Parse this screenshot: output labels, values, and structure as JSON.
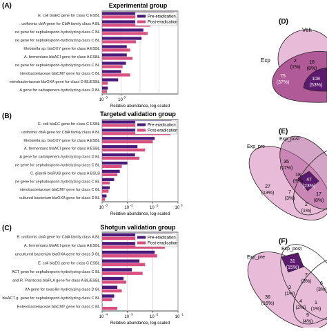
{
  "colors": {
    "pre": "#4a1a7a",
    "post": "#d94f7f",
    "venn_dark": "#5c1a6e",
    "venn_mid": "#b05a98",
    "venn_light": "#e8bcd8"
  },
  "chart_data": [
    {
      "type": "bar",
      "panel_label": "(A)",
      "title": "Experimental group",
      "xlabel": "Relative abundance, log-scaled",
      "xscale": "log",
      "xlim": [
        0.001,
        10
      ],
      "ticks": [
        "10",
        "-3",
        "10",
        "0"
      ],
      "legend": {
        "placement": "top-right",
        "entries": [
          "Pre-eradication",
          "Post-eradication"
        ]
      },
      "categories": [
        "E. coli blaEC gene for class C ESBL",
        ". uniformis cblA gene for CblA family class A BL",
        "ne gene for cephalosporin-hydrolyzing class C BL",
        "ne gene for cephalosporin-hydrolyzing class C BL",
        "Klebsiella sp. blaOXY gene for class A ESBL",
        "A. fermentans blaACI gene for class A ESBL",
        "ne gene for cephalosporin-hydrolyzing class C BL",
        "nterobacteriaceae blaCMY gene for class C BL",
        "nterobacteriaceae blaOXA gene for class D BL/ESBL",
        "A gene for carbapenem-hydrolyzing class D BL"
      ],
      "series": [
        {
          "name": "Pre-eradication",
          "values": [
            6,
            0.5,
            0.15,
            0.12,
            0.02,
            0.02,
            0.018,
            0.01,
            0.007,
            0.002
          ]
        },
        {
          "name": "Post-eradication",
          "values": [
            7,
            0.35,
            0.25,
            0.06,
            0.03,
            0.04,
            0.012,
            0.03,
            0.002,
            0.0018
          ]
        }
      ]
    },
    {
      "type": "bar",
      "panel_label": "(B)",
      "title": "Targeted validation group",
      "xlabel": "Relative abundance, log-scaled",
      "xscale": "log",
      "xlim": [
        0.001,
        1
      ],
      "ticks": [
        "10",
        "-3",
        "10",
        "-2",
        "10",
        "-1",
        "10",
        "0"
      ],
      "legend": {
        "placement": "top-right",
        "entries": [
          "Pre-eradication",
          "Post-eradication"
        ]
      },
      "categories": [
        "E. coli blaEC gene for class C ESBL",
        ". uniformis cblA gene for CblA family class A BL",
        "Klebsiella sp. blaOXY gene for class A ESBL",
        "A. fermentans blaACI gene for class A ESBL",
        "A gene for carbapenem-hydrolyzing class D BL",
        "ne gene for cephalosporin-hydrolyzing class C BL",
        "C. gilardii blaRUB gene for class A BSLB",
        "ne gene for cephalosporin-hydrolyzing class C BL",
        "nterobacteriaceae blaCMY gene for class C BL",
        "cultured bacterium blaOXA gene for class D BL"
      ],
      "series": [
        {
          "name": "Pre-eradication",
          "values": [
            0.55,
            0.3,
            0.12,
            0.025,
            0.02,
            0.01,
            0.005,
            0.003,
            0.002,
            0.0015
          ]
        },
        {
          "name": "Post-eradication",
          "values": [
            0.8,
            0.5,
            0.1,
            0.05,
            0.03,
            0.006,
            0.004,
            0.002,
            0.0018,
            0.0013
          ]
        }
      ]
    },
    {
      "type": "bar",
      "panel_label": "(C)",
      "title": "Shotgun validation group",
      "xlabel": "Relative abundance, log-scaled",
      "xscale": "log",
      "xlim": [
        0.0001,
        0.1
      ],
      "ticks": [
        "10",
        "-4",
        "10",
        "-3",
        "10",
        "-2",
        "10",
        "-1"
      ],
      "legend": {
        "placement": "top-right",
        "entries": [
          "Pre-eradication",
          "Post-eradication"
        ]
      },
      "categories": [
        "B. uniformis cblA gene for CblA family class A BL",
        "A. fermentans blaACI gene for class A ESBL",
        "uncultured bacterium blaOXA gene for class D BL",
        "E. coli blaEC gene for class C ESBL",
        "ACT gene for cephalosporin-hydrolyzing class C BL",
        "and R. Planticola blaPLA gene for class A BL/ESBL",
        "XA gene for oxacillin-hydrolyzing class D BL",
        "blaACT g. gene for cephalosporin-hydrolyzing class C BL",
        "Enterobacteriaceae blaCMY gene for class C BL"
      ],
      "series": [
        {
          "name": "Pre-eradication",
          "values": [
            0.06,
            0.02,
            0.012,
            0.003,
            0.0015,
            0.0007,
            0.0004,
            0.0003,
            0.0001
          ]
        },
        {
          "name": "Post-eradication",
          "values": [
            0.08,
            0.03,
            0.015,
            0.005,
            0.004,
            0.0009,
            0.0006,
            0.00025,
            0.0004
          ]
        }
      ]
    }
  ],
  "venn": {
    "D": {
      "label": "(D)",
      "sets": [
        "Veh",
        "Exp"
      ],
      "regions": [
        {
          "count": "2",
          "pct": "(1%)"
        },
        {
          "count": "18",
          "pct": "(8%)"
        },
        {
          "count": "75",
          "pct": "(37%)"
        },
        {
          "count": "108",
          "pct": "(53%)"
        }
      ]
    },
    "E": {
      "label": "(E)",
      "sets": [
        "Exp_post",
        "Exp_pre"
      ],
      "regions": [
        {
          "count": "35",
          "pct": "(17%)"
        },
        {
          "count": "18",
          "pct": "(8%)"
        },
        {
          "count": "27",
          "pct": "(13%)"
        },
        {
          "count": "7",
          "pct": "(3%)"
        },
        {
          "count": "47",
          "pct": "(23%)"
        },
        {
          "count": "17",
          "pct": "(8%)"
        },
        {
          "count": "2",
          "pct": "(1%)"
        }
      ]
    },
    "F": {
      "label": "(F)",
      "sets": [
        "Exp_post",
        "Exp_pre"
      ],
      "regions": [
        {
          "count": "31",
          "pct": "(15%)"
        },
        {
          "count": "7",
          "pct": "(3%)"
        },
        {
          "count": "6",
          "pct": "(3%)"
        },
        {
          "count": "36",
          "pct": "(16%)"
        },
        {
          "count": "3",
          "pct": "(1%)"
        },
        {
          "count": "4",
          "pct": "(2%)"
        },
        {
          "count": "1",
          "pct": "(1%)"
        },
        {
          "count": "9",
          "pct": "(4%)"
        }
      ]
    }
  }
}
